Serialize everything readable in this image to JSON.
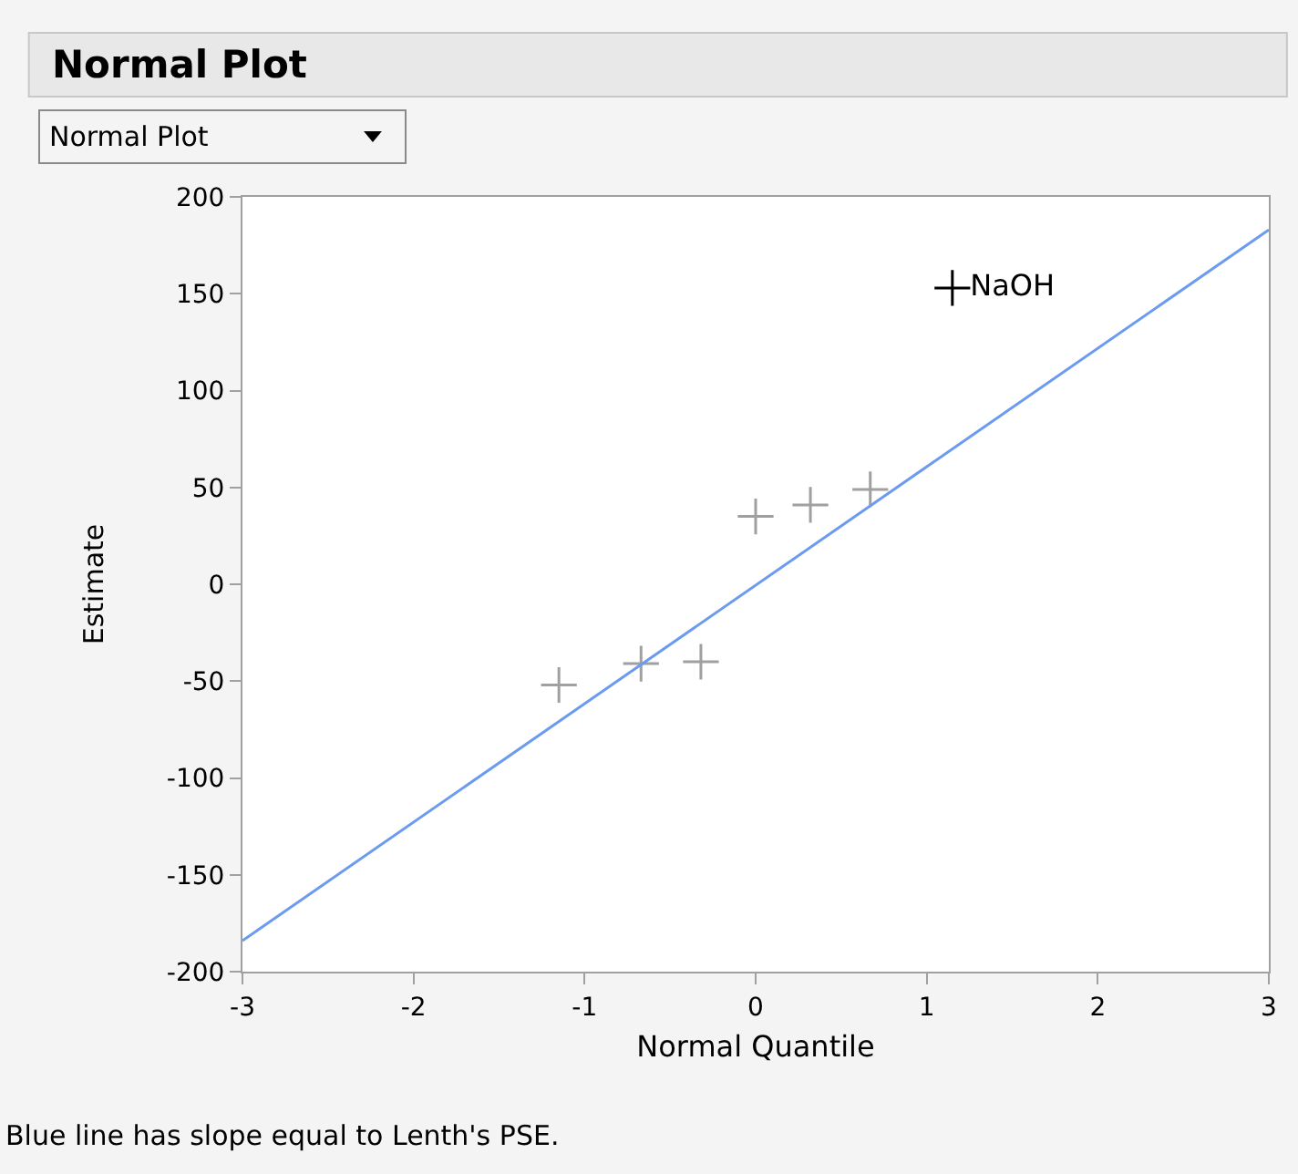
{
  "chart_data": {
    "type": "scatter",
    "title": "Normal Plot",
    "xlabel": "Normal Quantile",
    "ylabel": "Estimate",
    "annotations": [
      "Normal Plot",
      "Blue line has slope equal to Lenth's PSE."
    ],
    "series": [
      {
        "color": "#a0a0a0",
        "x": [
          -1.15,
          -0.67,
          -0.32,
          0,
          0.32,
          0.67
        ],
        "values": [
          -52,
          -41,
          -40,
          35,
          41,
          49
        ]
      },
      {
        "color": "#000000",
        "x": [
          1.15
        ],
        "values": [
          153
        ],
        "value_labels": [
          "NaOH"
        ]
      },
      {
        "type": "line",
        "color": "#6b9bf0",
        "x": [
          -3,
          3
        ],
        "values": [
          -184,
          183
        ],
        "marker": "none"
      }
    ],
    "marker": "cross",
    "xlim": [
      -3,
      3
    ],
    "xticks": [
      -3,
      -2,
      -1,
      0,
      1,
      2,
      3
    ],
    "ylim": [
      -200,
      200
    ],
    "yticks": [
      -200,
      -150,
      -100,
      -50,
      0,
      50,
      100,
      150,
      200
    ]
  }
}
